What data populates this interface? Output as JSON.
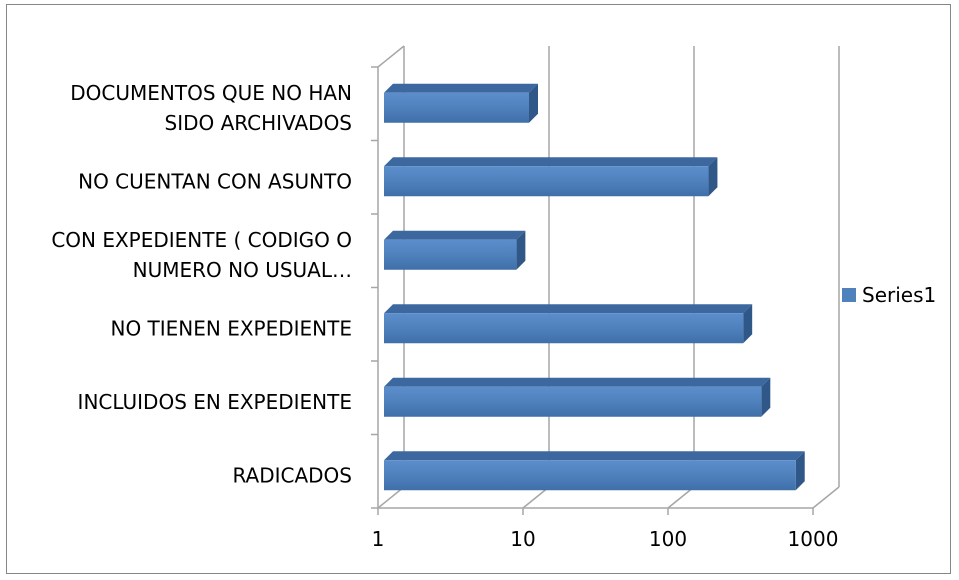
{
  "chart_data": {
    "type": "bar",
    "orientation": "horizontal",
    "three_d": true,
    "x_scale": "log",
    "xlim": [
      1,
      1000
    ],
    "x_ticks": [
      "1",
      "10",
      "100",
      "1000"
    ],
    "x_tick_values": [
      1,
      10,
      100,
      1000
    ],
    "grid": true,
    "legend_position": "right",
    "categories": [
      [
        "DOCUMENTOS QUE NO HAN",
        "SIDO ARCHIVADOS"
      ],
      [
        "NO CUENTAN CON ASUNTO"
      ],
      [
        "CON EXPEDIENTE ( CODIGO O",
        "NUMERO NO USUAL…"
      ],
      [
        "NO TIENEN EXPEDIENTE"
      ],
      [
        "INCLUIDOS EN EXPEDIENTE"
      ],
      [
        "RADICADOS"
      ]
    ],
    "series": [
      {
        "name": "Series1",
        "color": "#4f81bd",
        "values": [
          11,
          190,
          9,
          330,
          440,
          760
        ]
      }
    ]
  }
}
